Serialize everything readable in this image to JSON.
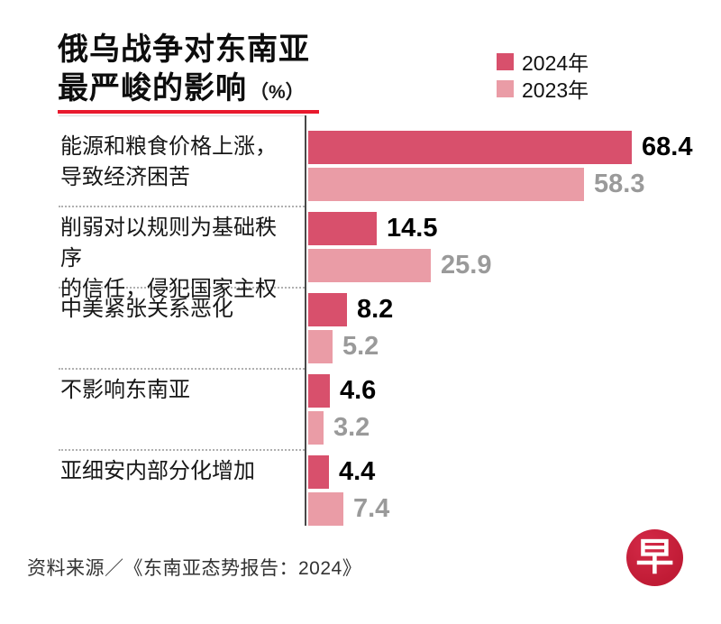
{
  "title": {
    "line1": "俄乌战争对东南亚",
    "line2": "最严峻的影响",
    "unit": "（%）"
  },
  "legend": {
    "items": [
      {
        "label": "2024年",
        "color": "#d8506c"
      },
      {
        "label": "2023年",
        "color": "#ea9ca6"
      }
    ]
  },
  "chart_data": {
    "type": "bar",
    "orientation": "horizontal",
    "title": "俄乌战争对东南亚最严峻的影响（%）",
    "categories": [
      "能源和粮食价格上涨，导致经济困苦",
      "削弱对以规则为基础秩序的信任，侵犯国家主权",
      "中美紧张关系恶化",
      "不影响东南亚",
      "亚细安内部分化增加"
    ],
    "category_display_lines": [
      [
        "能源和粮食价格上涨，",
        "导致经济困苦"
      ],
      [
        "削弱对以规则为基础秩序",
        "的信任，侵犯国家主权"
      ],
      [
        "中美紧张关系恶化"
      ],
      [
        "不影响东南亚"
      ],
      [
        "亚细安内部分化增加"
      ]
    ],
    "series": [
      {
        "name": "2024年",
        "color": "#d8506c",
        "value_label_color": "#000000",
        "values": [
          68.4,
          14.5,
          8.2,
          4.6,
          4.4
        ]
      },
      {
        "name": "2023年",
        "color": "#ea9ca6",
        "value_label_color": "#9a9a9a",
        "values": [
          58.3,
          25.9,
          5.2,
          3.2,
          7.4
        ]
      }
    ],
    "xlim": [
      0,
      70
    ],
    "grid": false,
    "value_labels": true,
    "legend_position": "top-right",
    "baseline_axis": "vertical line at 0"
  },
  "source": "资料来源／《东南亚态势报告：2024》",
  "logo": {
    "char": "早",
    "background": "#c01b35"
  },
  "style": {
    "underline_color": "#e8192d",
    "axis_color": "#474747",
    "separator_color": "#b0b0b0"
  }
}
